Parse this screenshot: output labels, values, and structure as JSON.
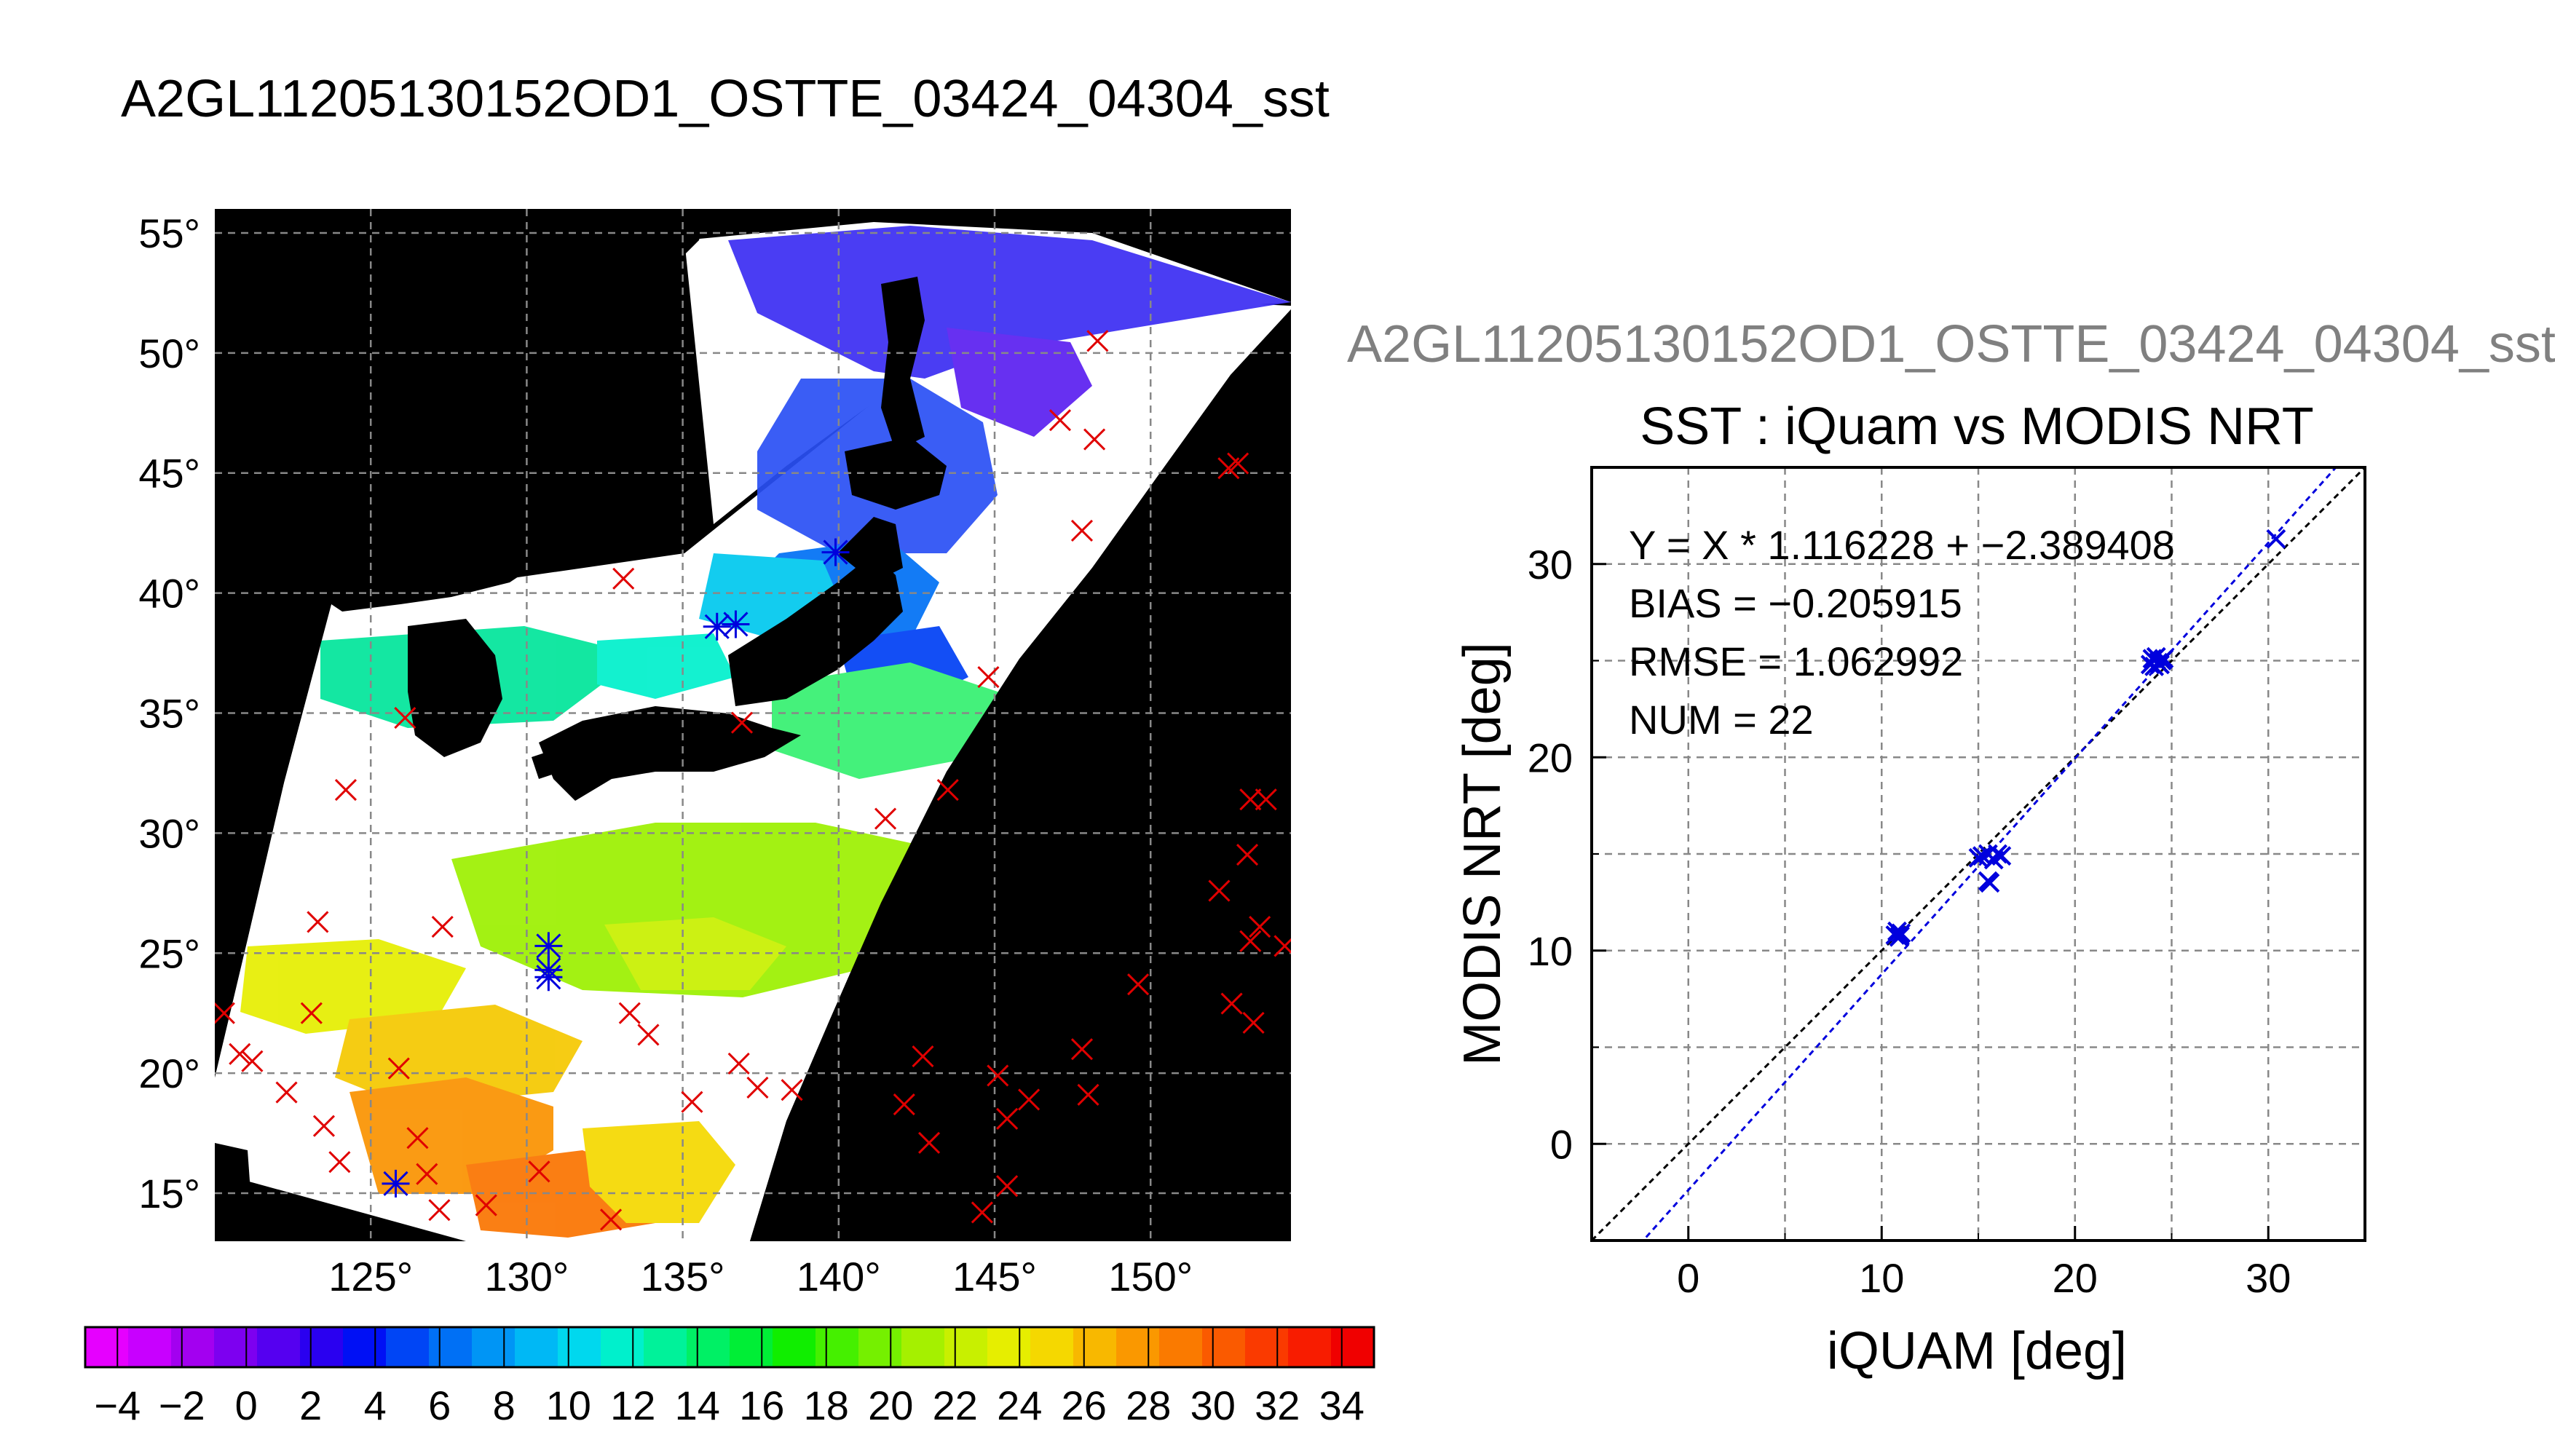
{
  "page_title": "A2GL11205130152OD1_OSTTE_03424_04304_sst",
  "right_title": "A2GL11205130152OD1_OSTTE_03424_04304_sst",
  "colors": {
    "background": "#ffffff",
    "map_background": "#000000",
    "match_marker": "#e00000",
    "matchup_marker": "#0000dd",
    "grid": "#888888"
  },
  "chart_data": [
    {
      "type": "map",
      "subtitle": "",
      "lon_ticks": [
        "125°",
        "130°",
        "135°",
        "140°",
        "145°",
        "150°"
      ],
      "lat_ticks": [
        "15°",
        "20°",
        "25°",
        "30°",
        "35°",
        "40°",
        "45°",
        "50°",
        "55°"
      ],
      "lon_values": [
        125,
        130,
        135,
        140,
        145,
        150
      ],
      "lat_values": [
        15,
        20,
        25,
        30,
        35,
        40,
        45,
        50,
        55
      ],
      "xlim": [
        120,
        154.5
      ],
      "ylim": [
        13,
        56
      ],
      "grid": true,
      "red_x_points": [
        [
          123.1,
          22.5
        ],
        [
          120.8,
          20.8
        ],
        [
          121.2,
          20.5
        ],
        [
          122.3,
          19.2
        ],
        [
          123.5,
          17.8
        ],
        [
          124,
          16.3
        ],
        [
          125.9,
          20.2
        ],
        [
          126.5,
          17.3
        ],
        [
          126.8,
          15.8
        ],
        [
          127.2,
          14.3
        ],
        [
          128.7,
          14.5
        ],
        [
          130.4,
          15.9
        ],
        [
          132.7,
          13.9
        ],
        [
          126.1,
          34.8
        ],
        [
          124.2,
          31.8
        ],
        [
          123.3,
          26.3
        ],
        [
          127.3,
          26.1
        ],
        [
          133.3,
          22.5
        ],
        [
          133.9,
          21.6
        ],
        [
          135.3,
          18.8
        ],
        [
          136.8,
          20.4
        ],
        [
          137.4,
          19.4
        ],
        [
          138.5,
          19.3
        ],
        [
          133.1,
          40.6
        ],
        [
          136.9,
          34.6
        ],
        [
          141.5,
          30.6
        ],
        [
          143.5,
          31.8
        ],
        [
          144.8,
          36.5
        ],
        [
          142.7,
          20.7
        ],
        [
          142.1,
          18.7
        ],
        [
          142.9,
          17.1
        ],
        [
          144.6,
          14.2
        ],
        [
          145.1,
          19.9
        ],
        [
          145.4,
          18.1
        ],
        [
          145.4,
          15.3
        ],
        [
          146.1,
          18.9
        ],
        [
          147.8,
          21.0
        ],
        [
          148.0,
          19.1
        ],
        [
          149.6,
          23.7
        ],
        [
          147.1,
          47.2
        ],
        [
          148.2,
          46.4
        ],
        [
          147.8,
          42.6
        ],
        [
          148.3,
          50.5
        ],
        [
          152.5,
          45.2
        ],
        [
          152.8,
          45.4
        ],
        [
          152.2,
          27.6
        ],
        [
          153.1,
          29.1
        ],
        [
          153.2,
          31.4
        ],
        [
          153.7,
          31.4
        ],
        [
          152.6,
          22.9
        ],
        [
          153.3,
          22.1
        ],
        [
          153.2,
          25.5
        ],
        [
          153.5,
          26.1
        ],
        [
          154.3,
          25.3
        ],
        [
          120.3,
          22.5
        ]
      ],
      "blue_star_points": [
        [
          130.7,
          25.3
        ],
        [
          130.7,
          24.3
        ],
        [
          130.7,
          24.0
        ],
        [
          136.1,
          38.6
        ],
        [
          136.7,
          38.7
        ],
        [
          139.9,
          41.7
        ],
        [
          125.8,
          15.4
        ]
      ],
      "colorbar": {
        "ticks": [
          "−4",
          "−2",
          "0",
          "2",
          "4",
          "6",
          "8",
          "10",
          "12",
          "14",
          "16",
          "18",
          "20",
          "22",
          "24",
          "26",
          "28",
          "30",
          "32",
          "34"
        ],
        "range": [
          -5,
          35
        ],
        "segments": [
          "#e600ff",
          "#c800ff",
          "#a300f0",
          "#7d00f0",
          "#5500f0",
          "#2a00f0",
          "#0010f5",
          "#0045f5",
          "#0070f5",
          "#0095f5",
          "#00b8f5",
          "#00d8ee",
          "#00f0cc",
          "#00f29a",
          "#00f065",
          "#00ee36",
          "#10ee00",
          "#45f000",
          "#75f000",
          "#a5f000",
          "#c8f000",
          "#e6ee00",
          "#f5d800",
          "#f8b800",
          "#fa9800",
          "#fa7a00",
          "#fa5a00",
          "#fa3a00",
          "#f81c00",
          "#f00000"
        ]
      }
    },
    {
      "type": "scatter",
      "title": "SST : iQuam vs MODIS NRT",
      "xlabel": "iQUAM [deg]",
      "ylabel": "MODIS NRT [deg]",
      "xlim": [
        -5,
        35
      ],
      "ylim": [
        -5,
        35
      ],
      "xticks": [
        "0",
        "10",
        "20",
        "30"
      ],
      "yticks": [
        "0",
        "10",
        "20",
        "30"
      ],
      "tick_values": [
        0,
        10,
        20,
        30
      ],
      "grid": true,
      "annotations": [
        "Y = X * 1.116228 + −2.389408",
        "BIAS = −0.205915",
        "RMSE = 1.062992",
        "NUM = 22"
      ],
      "fit": {
        "slope": 1.116228,
        "intercept": -2.389408
      },
      "points": [
        [
          10.8,
          11.0
        ],
        [
          10.9,
          10.7
        ],
        [
          11.0,
          10.9
        ],
        [
          10.7,
          10.8
        ],
        [
          10.95,
          10.75
        ],
        [
          15.0,
          14.8
        ],
        [
          15.5,
          15.0
        ],
        [
          16.2,
          14.9
        ],
        [
          15.6,
          13.5
        ],
        [
          15.5,
          13.6
        ],
        [
          15.8,
          14.7
        ],
        [
          24.0,
          25.1
        ],
        [
          24.4,
          24.8
        ],
        [
          24.1,
          24.7
        ],
        [
          24.5,
          25.0
        ],
        [
          24.2,
          25.2
        ],
        [
          24.3,
          24.9
        ],
        [
          23.9,
          24.8
        ],
        [
          30.4,
          31.3
        ],
        [
          15.2,
          14.9
        ],
        [
          16.0,
          15.0
        ],
        [
          24.6,
          25.1
        ]
      ]
    }
  ]
}
